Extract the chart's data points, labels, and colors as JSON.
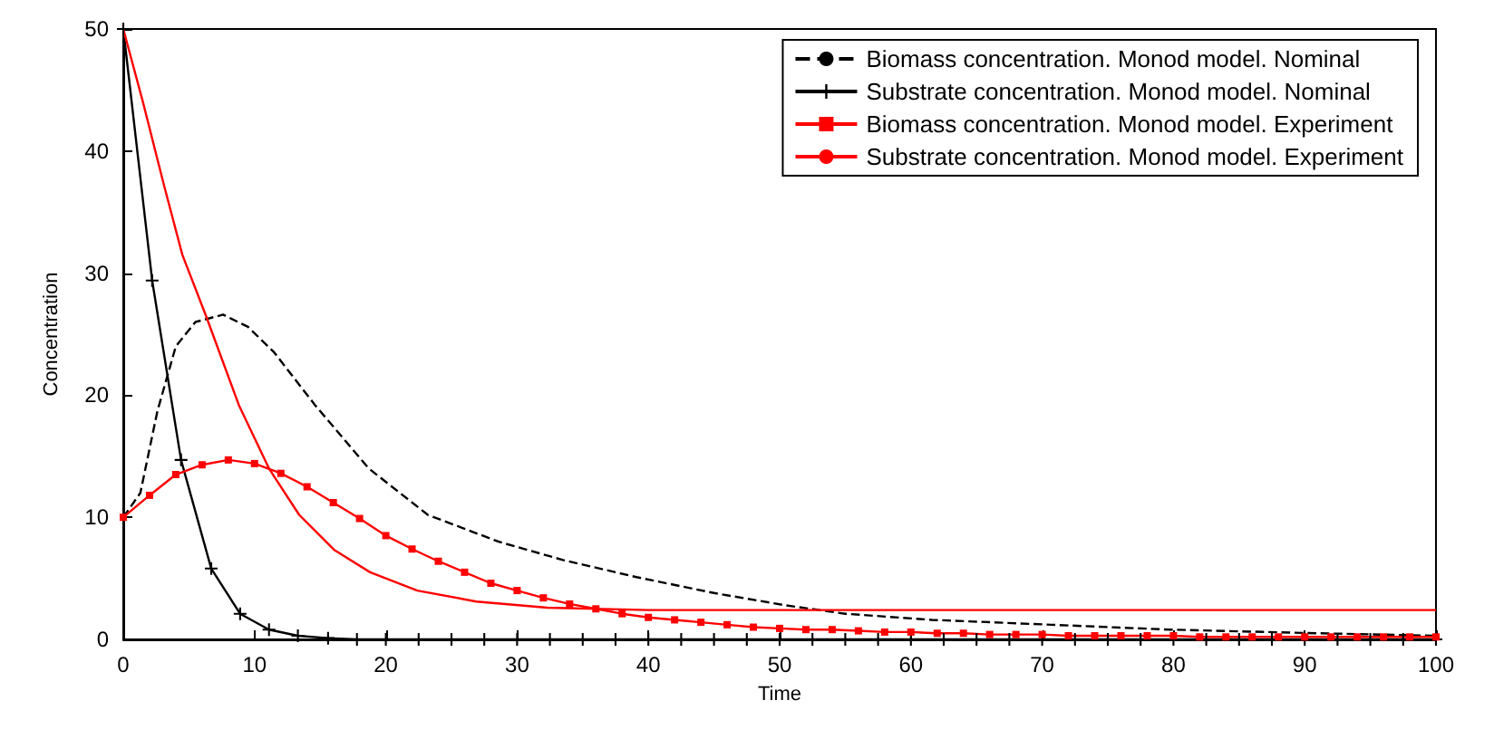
{
  "chart_data": {
    "type": "line",
    "xlabel": "Time",
    "ylabel": "Concentration",
    "xlim": [
      0,
      100
    ],
    "ylim": [
      0,
      50
    ],
    "xticks": [
      0,
      10,
      20,
      30,
      40,
      50,
      60,
      70,
      80,
      90,
      100
    ],
    "yticks": [
      0,
      10,
      20,
      30,
      40,
      50
    ],
    "grid": false,
    "legend": "top right",
    "series": [
      {
        "name": "Biomass concentration. Monod model. Nominal",
        "color": "#000000",
        "line_style": "dashed",
        "marker": "none",
        "x": [
          0,
          1.3,
          2.6,
          4,
          5.5,
          7.6,
          9.5,
          11.5,
          14.6,
          18.7,
          23.2,
          28.6,
          33.5,
          39.1,
          45,
          50.4,
          55,
          61.6,
          70.7,
          79.7,
          91,
          100
        ],
        "values": [
          10,
          12,
          18.7,
          24,
          26,
          26.6,
          25.6,
          23.5,
          19.2,
          14,
          10.2,
          8,
          6.5,
          5.1,
          3.8,
          2.8,
          2.1,
          1.6,
          1.2,
          0.8,
          0.5,
          0.3
        ]
      },
      {
        "name": "Substrate concentration. Monod model. Nominal",
        "color": "#000000",
        "line_style": "solid",
        "marker": "cross",
        "x": [
          0,
          2.2,
          4.4,
          6.7,
          8.9,
          11.1,
          13.3,
          15.6,
          17.8,
          20,
          22.5,
          25,
          27.5,
          30,
          32.5,
          35,
          37.5,
          40,
          42.5,
          45,
          47.5,
          50,
          52.5,
          55,
          57.5,
          60,
          62.5,
          65,
          67.5,
          70,
          72.5,
          75,
          77.5,
          80,
          82.5,
          85,
          87.5,
          90,
          92.5,
          95,
          97.5,
          100
        ],
        "values": [
          50,
          29.4,
          14.7,
          5.8,
          2.1,
          0.8,
          0.3,
          0.1,
          0,
          0,
          0,
          0,
          0,
          0,
          0,
          0,
          0,
          0,
          0,
          0,
          0,
          0,
          0,
          0,
          0,
          0,
          0,
          0,
          0,
          0,
          0,
          0,
          0,
          0,
          0,
          0,
          0,
          0,
          0,
          0,
          0,
          0
        ]
      },
      {
        "name": "Biomass concentration. Monod model. Experiment",
        "color": "#ff0000",
        "line_style": "solid",
        "marker": "square",
        "x": [
          0,
          2,
          4,
          6,
          8,
          10,
          12,
          14,
          16,
          18,
          20,
          22,
          24,
          26,
          28,
          30,
          32,
          34,
          36,
          38,
          40,
          42,
          44,
          46,
          48,
          50,
          52,
          54,
          56,
          58,
          60,
          62,
          64,
          66,
          68,
          70,
          72,
          74,
          76,
          78,
          80,
          82,
          84,
          86,
          88,
          90,
          92,
          94,
          96,
          98,
          100
        ],
        "values": [
          10,
          11.8,
          13.5,
          14.3,
          14.7,
          14.4,
          13.6,
          12.5,
          11.2,
          9.9,
          8.5,
          7.4,
          6.4,
          5.5,
          4.6,
          4.0,
          3.4,
          2.9,
          2.5,
          2.1,
          1.8,
          1.6,
          1.4,
          1.2,
          1.0,
          0.9,
          0.8,
          0.8,
          0.7,
          0.6,
          0.6,
          0.5,
          0.5,
          0.4,
          0.4,
          0.4,
          0.3,
          0.3,
          0.3,
          0.3,
          0.3,
          0.2,
          0.2,
          0.2,
          0.2,
          0.2,
          0.2,
          0.2,
          0.2,
          0.2,
          0.2
        ]
      },
      {
        "name": "Substrate concentration. Monod model. Experiment",
        "color": "#ff0000",
        "line_style": "solid",
        "marker": "none",
        "x": [
          0,
          1.5,
          3.1,
          4.5,
          6.3,
          8.8,
          11.1,
          13.4,
          16.1,
          18.8,
          22.4,
          26.9,
          32.3,
          40,
          50,
          60,
          80,
          100
        ],
        "values": [
          50,
          44,
          37.2,
          31.5,
          26.5,
          19.2,
          14,
          10.2,
          7.3,
          5.5,
          4.0,
          3.1,
          2.6,
          2.4,
          2.4,
          2.4,
          2.4,
          2.4
        ]
      }
    ]
  }
}
